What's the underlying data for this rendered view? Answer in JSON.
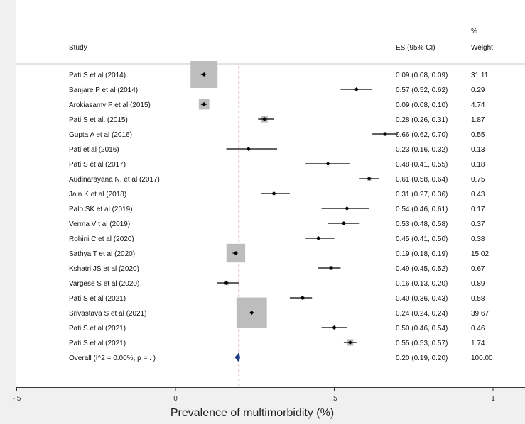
{
  "chart_data": {
    "type": "forest",
    "xlabel": "Prevalence of multimorbidity (%)",
    "xlim": [
      -0.5,
      1
    ],
    "xticks": [
      {
        "value": -0.5,
        "label": "-.5"
      },
      {
        "value": 0,
        "label": "0"
      },
      {
        "value": 0.5,
        "label": ".5"
      },
      {
        "value": 1,
        "label": "1"
      }
    ],
    "null_line": 0.2,
    "headers": {
      "study": "Study",
      "es": "ES (95% CI)",
      "weight_top": "%",
      "weight": "Weight"
    },
    "studies": [
      {
        "name": "Pati S et al (2014)",
        "es": 0.09,
        "lo": 0.08,
        "hi": 0.09,
        "ci_text": "0.09 (0.08, 0.09)",
        "weight": 31.11,
        "weight_text": "31.11"
      },
      {
        "name": "Banjare P et al (2014)",
        "es": 0.57,
        "lo": 0.52,
        "hi": 0.62,
        "ci_text": "0.57 (0.52, 0.62)",
        "weight": 0.29,
        "weight_text": "0.29"
      },
      {
        "name": "Arokiasamy P et al (2015)",
        "es": 0.09,
        "lo": 0.08,
        "hi": 0.1,
        "ci_text": "0.09 (0.08, 0.10)",
        "weight": 4.74,
        "weight_text": "4.74"
      },
      {
        "name": "Pati S et al. (2015)",
        "es": 0.28,
        "lo": 0.26,
        "hi": 0.31,
        "ci_text": "0.28 (0.26, 0.31)",
        "weight": 1.87,
        "weight_text": "1.87"
      },
      {
        "name": "Gupta A et al (2016)",
        "es": 0.66,
        "lo": 0.62,
        "hi": 0.7,
        "ci_text": "0.66 (0.62, 0.70)",
        "weight": 0.55,
        "weight_text": "0.55"
      },
      {
        "name": "Pati et al (2016)",
        "es": 0.23,
        "lo": 0.16,
        "hi": 0.32,
        "ci_text": "0.23 (0.16, 0.32)",
        "weight": 0.13,
        "weight_text": "0.13"
      },
      {
        "name": "Pati S et al (2017)",
        "es": 0.48,
        "lo": 0.41,
        "hi": 0.55,
        "ci_text": "0.48 (0.41, 0.55)",
        "weight": 0.18,
        "weight_text": "0.18"
      },
      {
        "name": "Audinarayana N. et al (2017)",
        "es": 0.61,
        "lo": 0.58,
        "hi": 0.64,
        "ci_text": "0.61 (0.58, 0.64)",
        "weight": 0.75,
        "weight_text": "0.75"
      },
      {
        "name": "Jain K et al (2018)",
        "es": 0.31,
        "lo": 0.27,
        "hi": 0.36,
        "ci_text": "0.31 (0.27, 0.36)",
        "weight": 0.43,
        "weight_text": "0.43"
      },
      {
        "name": "Palo SK et al (2019)",
        "es": 0.54,
        "lo": 0.46,
        "hi": 0.61,
        "ci_text": "0.54 (0.46, 0.61)",
        "weight": 0.17,
        "weight_text": "0.17"
      },
      {
        "name": "Verma V t al (2019)",
        "es": 0.53,
        "lo": 0.48,
        "hi": 0.58,
        "ci_text": "0.53 (0.48, 0.58)",
        "weight": 0.37,
        "weight_text": "0.37"
      },
      {
        "name": "Rohini C et al (2020)",
        "es": 0.45,
        "lo": 0.41,
        "hi": 0.5,
        "ci_text": "0.45 (0.41, 0.50)",
        "weight": 0.38,
        "weight_text": "0.38"
      },
      {
        "name": "Sathya T et al (2020)",
        "es": 0.19,
        "lo": 0.18,
        "hi": 0.19,
        "ci_text": "0.19 (0.18, 0.19)",
        "weight": 15.02,
        "weight_text": "15.02"
      },
      {
        "name": "Kshatri JS et al (2020)",
        "es": 0.49,
        "lo": 0.45,
        "hi": 0.52,
        "ci_text": "0.49 (0.45, 0.52)",
        "weight": 0.67,
        "weight_text": "0.67"
      },
      {
        "name": "Vargese S et al (2020)",
        "es": 0.16,
        "lo": 0.13,
        "hi": 0.2,
        "ci_text": "0.16 (0.13, 0.20)",
        "weight": 0.89,
        "weight_text": "0.89"
      },
      {
        "name": "Pati S et al (2021)",
        "es": 0.4,
        "lo": 0.36,
        "hi": 0.43,
        "ci_text": "0.40 (0.36, 0.43)",
        "weight": 0.58,
        "weight_text": "0.58"
      },
      {
        "name": "Srivastava S et al (2021)",
        "es": 0.24,
        "lo": 0.24,
        "hi": 0.24,
        "ci_text": "0.24 (0.24, 0.24)",
        "weight": 39.67,
        "weight_text": "39.67"
      },
      {
        "name": "Pati S et al (2021)",
        "es": 0.5,
        "lo": 0.46,
        "hi": 0.54,
        "ci_text": "0.50 (0.46, 0.54)",
        "weight": 0.46,
        "weight_text": "0.46"
      },
      {
        "name": "Pati S et al (2021)",
        "es": 0.55,
        "lo": 0.53,
        "hi": 0.57,
        "ci_text": "0.55 (0.53, 0.57)",
        "weight": 1.74,
        "weight_text": "1.74"
      }
    ],
    "overall": {
      "name": "Overall  (I^2 = 0.00%, p = . )",
      "es": 0.2,
      "lo": 0.19,
      "hi": 0.2,
      "ci_text": "0.20 (0.19, 0.20)",
      "weight": 100.0,
      "weight_text": "100.00"
    },
    "colors": {
      "box": "#bdbdbd",
      "null_line": "#c0504d",
      "overall": "#1f3c88",
      "text": "#111111"
    }
  }
}
